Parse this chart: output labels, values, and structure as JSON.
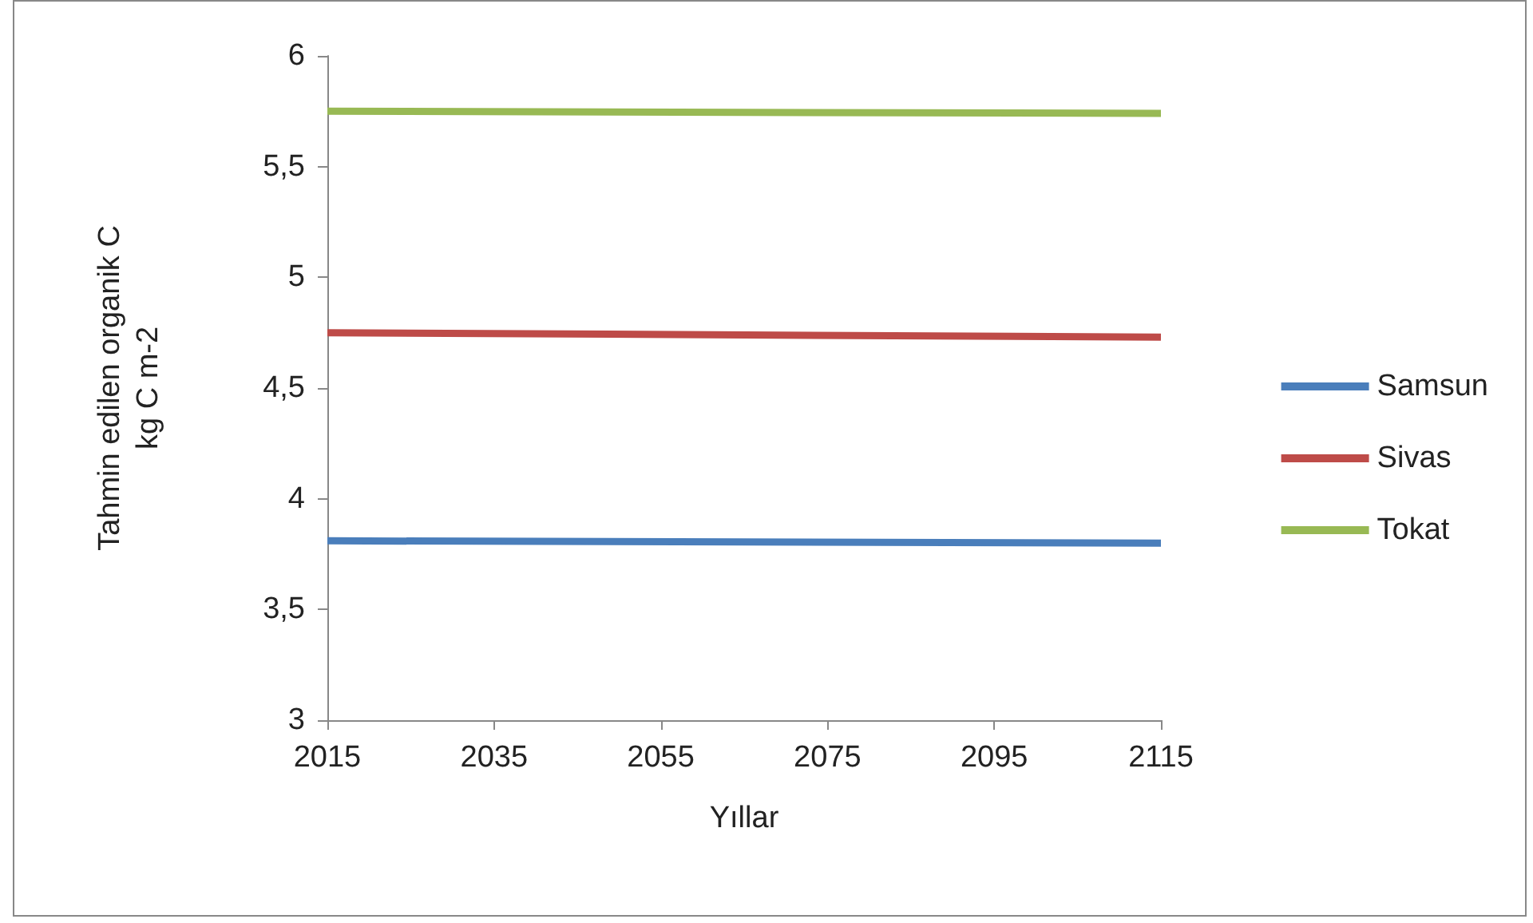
{
  "chart_data": {
    "type": "line",
    "xlabel": "Yıllar",
    "ylabel": "Tahmin edilen organik C\nkg C m-2",
    "x": [
      2015,
      2115
    ],
    "series": [
      {
        "name": "Samsun",
        "color": "#4a7ebb",
        "values": [
          3.81,
          3.8
        ]
      },
      {
        "name": "Sivas",
        "color": "#be4b48",
        "values": [
          4.75,
          4.73
        ]
      },
      {
        "name": "Tokat",
        "color": "#98b954",
        "values": [
          5.75,
          5.74
        ]
      }
    ],
    "xlim": [
      2015,
      2115
    ],
    "xticks": [
      2015,
      2035,
      2055,
      2075,
      2095,
      2115
    ],
    "ylim": [
      3,
      6
    ],
    "yticks": [
      3,
      {
        "value": 3.5,
        "label": "3,5"
      },
      4,
      {
        "value": 4.5,
        "label": "4,5"
      },
      5,
      {
        "value": 5.5,
        "label": "5,5"
      },
      6
    ],
    "grid": false,
    "legend": "right",
    "marker": "none",
    "line_style": "solid"
  }
}
